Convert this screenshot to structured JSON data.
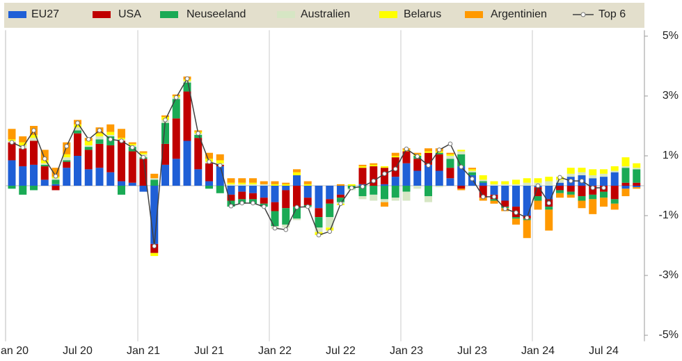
{
  "chart_data": {
    "type": "bar",
    "categories": [
      "Jan 20",
      null,
      null,
      null,
      null,
      null,
      "Jul 20",
      null,
      null,
      null,
      null,
      null,
      "Jan 21",
      null,
      null,
      null,
      null,
      null,
      "Jul 21",
      null,
      null,
      null,
      null,
      null,
      "Jan 22",
      null,
      null,
      null,
      null,
      null,
      "Jul 22",
      null,
      null,
      null,
      null,
      null,
      "Jan 23",
      null,
      null,
      null,
      null,
      null,
      "Jul 23",
      null,
      null,
      null,
      null,
      null,
      "Jan 24",
      null,
      null,
      null,
      null,
      null,
      "Jul 24",
      null,
      null,
      null
    ],
    "series": [
      {
        "name": "EU27",
        "color": "#1f5fd6",
        "values": [
          0.85,
          0.65,
          0.7,
          0.2,
          0.05,
          0.6,
          1.0,
          0.55,
          0.6,
          0.45,
          0.15,
          0.1,
          -0.2,
          -1.95,
          0.7,
          0.9,
          1.5,
          0.55,
          0.15,
          0.65,
          -0.3,
          -0.2,
          -0.25,
          -0.4,
          -0.55,
          -0.15,
          0.35,
          -0.4,
          -0.75,
          -0.45,
          -0.3,
          0.0,
          0.05,
          0.0,
          0.05,
          0.3,
          0.75,
          0.5,
          0.7,
          0.5,
          0.25,
          0.65,
          0.35,
          0.1,
          -0.3,
          -0.5,
          -0.7,
          -1.0,
          -0.05,
          -0.45,
          0.1,
          0.3,
          0.35,
          0.25,
          0.3,
          0.45,
          -0.1,
          -0.05
        ]
      },
      {
        "name": "USA",
        "color": "#c00000",
        "values": [
          0.6,
          0.6,
          0.8,
          0.45,
          -0.15,
          0.2,
          0.75,
          0.65,
          0.8,
          0.9,
          1.35,
          1.05,
          0.9,
          -0.3,
          0.7,
          1.35,
          1.65,
          1.05,
          0.6,
          0.05,
          -0.2,
          -0.25,
          -0.2,
          -0.2,
          -0.3,
          -0.6,
          -0.7,
          -0.25,
          -0.3,
          -0.15,
          -0.1,
          0.0,
          0.55,
          0.65,
          0.55,
          0.65,
          0.4,
          0.4,
          0.4,
          0.55,
          0.35,
          -0.1,
          0.0,
          -0.4,
          -0.15,
          -0.2,
          -0.35,
          -0.1,
          -0.3,
          -0.25,
          -0.15,
          -0.2,
          -0.35,
          -0.3,
          -0.2,
          -0.45,
          0.1,
          0.1
        ]
      },
      {
        "name": "Neuseeland",
        "color": "#1aaa55",
        "values": [
          -0.1,
          -0.3,
          -0.15,
          0.05,
          0.15,
          0.05,
          0.1,
          0.1,
          0.15,
          0.3,
          -0.3,
          0.15,
          0.05,
          0.2,
          0.7,
          0.65,
          0.3,
          0.1,
          -0.1,
          -0.25,
          -0.2,
          -0.15,
          -0.15,
          -0.1,
          -0.5,
          -0.55,
          -0.4,
          -0.05,
          -0.35,
          -0.45,
          -0.15,
          -0.1,
          -0.35,
          -0.3,
          -0.45,
          -0.4,
          -0.2,
          0.1,
          -0.35,
          0.05,
          0.3,
          0.4,
          0.1,
          0.05,
          -0.05,
          -0.05,
          -0.05,
          -0.05,
          -0.15,
          -0.1,
          -0.1,
          -0.1,
          -0.15,
          -0.15,
          -0.2,
          -0.15,
          0.5,
          0.45
        ]
      },
      {
        "name": "Australien",
        "color": "#d6e6c4",
        "values": [
          0.05,
          0.1,
          0.1,
          0.05,
          0.05,
          0.1,
          0.1,
          0.05,
          0.1,
          0.05,
          0.05,
          0.05,
          0.1,
          0.05,
          0.1,
          0.05,
          0.05,
          0.05,
          0.05,
          0.05,
          0.05,
          0.05,
          0.05,
          0.05,
          -0.1,
          -0.1,
          -0.05,
          -0.05,
          -0.15,
          -0.35,
          -0.05,
          -0.05,
          -0.1,
          -0.2,
          -0.1,
          -0.1,
          -0.3,
          -0.1,
          -0.2,
          -0.05,
          0.1,
          0.1,
          0.05,
          0.05,
          0.05,
          0.05,
          0.05,
          0.1,
          0.1,
          0.15,
          0.1,
          0.1,
          0.1,
          0.1,
          0.1,
          0.05,
          0.05,
          0.05
        ]
      },
      {
        "name": "Belarus",
        "color": "#ffff00",
        "values": [
          0.05,
          0.1,
          0.1,
          0.1,
          0.05,
          0.1,
          0.1,
          0.15,
          0.1,
          0.1,
          0.05,
          0.05,
          0.05,
          -0.1,
          0.1,
          0.05,
          0.05,
          0.05,
          0.1,
          0.1,
          0.05,
          0.05,
          0.05,
          0.0,
          0.05,
          0.05,
          0.1,
          0.05,
          -0.1,
          -0.1,
          -0.05,
          0.05,
          0.05,
          0.05,
          0.05,
          0.05,
          0.05,
          0.05,
          0.05,
          0.05,
          0.05,
          0.05,
          0.05,
          0.15,
          0.1,
          0.1,
          0.15,
          0.15,
          0.15,
          0.15,
          0.1,
          0.2,
          0.15,
          0.2,
          0.15,
          0.15,
          0.3,
          0.15
        ]
      },
      {
        "name": "Argentinien",
        "color": "#ff9900",
        "values": [
          0.35,
          0.2,
          0.3,
          0.35,
          0.3,
          0.4,
          0.15,
          0.1,
          0.2,
          0.25,
          0.3,
          0.05,
          0.05,
          0.15,
          0.05,
          0.05,
          0.1,
          0.05,
          0.2,
          0.2,
          0.15,
          0.15,
          0.15,
          0.1,
          0.1,
          0.05,
          0.1,
          0.1,
          0.0,
          0.0,
          0.05,
          0.0,
          0.05,
          0.05,
          -0.15,
          0.1,
          0.05,
          0.05,
          0.1,
          0.1,
          0.05,
          -0.05,
          0.05,
          -0.1,
          -0.1,
          -0.1,
          -0.2,
          -0.6,
          -0.3,
          -0.7,
          -0.15,
          -0.1,
          -0.25,
          -0.5,
          -0.3,
          -0.2,
          -0.25,
          -0.05
        ]
      },
      {
        "name": "Top 6",
        "type": "line",
        "color": "#404040",
        "values": [
          1.45,
          1.28,
          1.85,
          0.9,
          0.32,
          1.32,
          2.1,
          1.55,
          1.85,
          1.55,
          1.5,
          1.28,
          0.95,
          -2.02,
          2.2,
          2.95,
          3.58,
          1.75,
          0.8,
          0.68,
          -0.68,
          -0.58,
          -0.58,
          -0.7,
          -1.42,
          -1.47,
          -0.72,
          -0.7,
          -1.65,
          -1.53,
          -0.6,
          -0.07,
          -0.03,
          0.16,
          0.4,
          0.56,
          1.23,
          0.98,
          0.68,
          1.2,
          1.4,
          0.63,
          0.23,
          -0.37,
          -0.37,
          -0.77,
          -0.9,
          -1.07,
          0.0,
          -0.58,
          0.28,
          0.16,
          0.16,
          -0.07,
          -0.07,
          null,
          null,
          null
        ]
      }
    ],
    "ylim": [
      -5.2,
      5.2
    ],
    "yticks": [
      {
        "value": 5,
        "label": "5%"
      },
      {
        "value": 3,
        "label": "3%"
      },
      {
        "value": 1,
        "label": "1%"
      },
      {
        "value": -1,
        "label": "-1%"
      },
      {
        "value": -3,
        "label": "-3%"
      },
      {
        "value": -5,
        "label": "-5%"
      }
    ],
    "stacked": true,
    "legend": "top"
  }
}
